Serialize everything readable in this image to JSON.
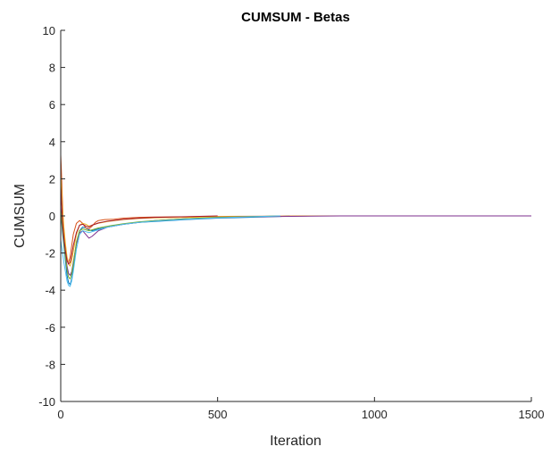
{
  "chart_data": {
    "type": "line",
    "title": "CUMSUM - Betas",
    "xlabel": "Iteration",
    "ylabel": "CUMSUM",
    "xlim": [
      0,
      1500
    ],
    "ylim": [
      -10,
      10
    ],
    "xticks": [
      0,
      500,
      1000,
      1500
    ],
    "yticks": [
      10,
      8,
      6,
      4,
      2,
      0,
      -2,
      -4,
      -6,
      -8,
      -10
    ],
    "grid": false,
    "legend": "none",
    "series": [
      {
        "color": "#0072BD",
        "x": [
          0,
          5,
          10,
          15,
          20,
          25,
          30,
          35,
          40,
          50,
          60,
          70,
          80,
          90,
          100,
          120,
          150,
          200,
          250,
          300,
          400,
          500,
          600,
          700,
          730
        ],
        "y": [
          0.3,
          -0.8,
          -1.6,
          -2.4,
          -3.2,
          -3.6,
          -3.7,
          -3.4,
          -2.8,
          -1.5,
          -0.8,
          -0.6,
          -0.65,
          -0.75,
          -0.8,
          -0.7,
          -0.6,
          -0.45,
          -0.35,
          -0.3,
          -0.2,
          -0.12,
          -0.08,
          -0.03,
          0.0
        ]
      },
      {
        "color": "#D95319",
        "x": [
          0,
          2,
          5,
          8,
          12,
          16,
          20,
          25,
          30,
          35,
          40,
          50,
          60,
          70,
          80,
          90,
          100,
          110,
          120,
          140,
          170,
          200,
          250,
          300,
          400,
          500,
          600,
          700,
          800,
          900,
          1000,
          1060
        ],
        "y": [
          3.3,
          2.5,
          1.0,
          -0.3,
          -1.3,
          -2.0,
          -2.4,
          -2.5,
          -2.2,
          -1.6,
          -1.0,
          -0.4,
          -0.25,
          -0.4,
          -0.65,
          -0.7,
          -0.55,
          -0.35,
          -0.25,
          -0.2,
          -0.18,
          -0.12,
          -0.08,
          -0.06,
          -0.05,
          -0.03,
          -0.02,
          -0.01,
          0.0,
          0.0,
          0.0,
          0.0
        ]
      },
      {
        "color": "#EDB120",
        "x": [
          0,
          5,
          10,
          15,
          20,
          25,
          30,
          35,
          40,
          50,
          60,
          70,
          80,
          90,
          100,
          120,
          150,
          200,
          250,
          300,
          400,
          500,
          600,
          700,
          800,
          900,
          1000,
          1060
        ],
        "y": [
          2.2,
          0.6,
          -0.6,
          -1.5,
          -2.2,
          -2.6,
          -2.7,
          -2.4,
          -1.9,
          -1.0,
          -0.5,
          -0.4,
          -0.45,
          -0.55,
          -0.5,
          -0.4,
          -0.3,
          -0.2,
          -0.14,
          -0.1,
          -0.08,
          -0.05,
          -0.03,
          -0.02,
          0.0,
          0.0,
          0.0,
          0.0
        ]
      },
      {
        "color": "#7E2F8E",
        "x": [
          0,
          5,
          10,
          15,
          20,
          25,
          30,
          35,
          40,
          50,
          60,
          70,
          80,
          90,
          100,
          120,
          150,
          200,
          250,
          300,
          400,
          500,
          600,
          700,
          800,
          900,
          1000,
          1200,
          1400,
          1500
        ],
        "y": [
          0.5,
          -0.5,
          -1.3,
          -2.0,
          -2.7,
          -3.1,
          -3.2,
          -3.0,
          -2.5,
          -1.5,
          -0.9,
          -0.8,
          -1.0,
          -1.2,
          -1.1,
          -0.8,
          -0.6,
          -0.45,
          -0.35,
          -0.25,
          -0.15,
          -0.1,
          -0.05,
          -0.03,
          -0.01,
          0.0,
          0.0,
          0.0,
          0.0,
          0.0
        ]
      },
      {
        "color": "#77AC30",
        "x": [
          0,
          5,
          10,
          15,
          20,
          25,
          30,
          35,
          40,
          50,
          60,
          70,
          80,
          90,
          100,
          120,
          150,
          200,
          250,
          300,
          400,
          500,
          600,
          700
        ],
        "y": [
          0.4,
          -0.6,
          -1.4,
          -2.2,
          -2.9,
          -3.3,
          -3.4,
          -3.1,
          -2.6,
          -1.4,
          -0.8,
          -0.7,
          -0.75,
          -0.8,
          -0.75,
          -0.65,
          -0.55,
          -0.42,
          -0.32,
          -0.25,
          -0.15,
          -0.08,
          -0.04,
          0.0
        ]
      },
      {
        "color": "#4DBEEE",
        "x": [
          0,
          5,
          10,
          15,
          20,
          25,
          30,
          35,
          40,
          50,
          60,
          70,
          80,
          90,
          100,
          120,
          150,
          200,
          250,
          300,
          400,
          500,
          600,
          700
        ],
        "y": [
          -1.3,
          -1.9,
          -2.5,
          -3.0,
          -3.5,
          -3.75,
          -3.8,
          -3.5,
          -3.0,
          -1.8,
          -1.0,
          -0.8,
          -0.85,
          -0.9,
          -0.85,
          -0.75,
          -0.6,
          -0.45,
          -0.35,
          -0.28,
          -0.18,
          -0.1,
          -0.05,
          0.0
        ]
      },
      {
        "color": "#A2142F",
        "x": [
          0,
          3,
          6,
          10,
          15,
          20,
          25,
          30,
          35,
          40,
          50,
          60,
          70,
          80,
          90,
          100,
          120,
          150,
          200,
          250,
          300,
          400,
          500
        ],
        "y": [
          1.6,
          0.6,
          -0.4,
          -1.2,
          -1.9,
          -2.4,
          -2.6,
          -2.5,
          -2.1,
          -1.6,
          -0.9,
          -0.5,
          -0.45,
          -0.55,
          -0.6,
          -0.5,
          -0.38,
          -0.28,
          -0.18,
          -0.12,
          -0.08,
          -0.04,
          0.0
        ]
      }
    ]
  }
}
